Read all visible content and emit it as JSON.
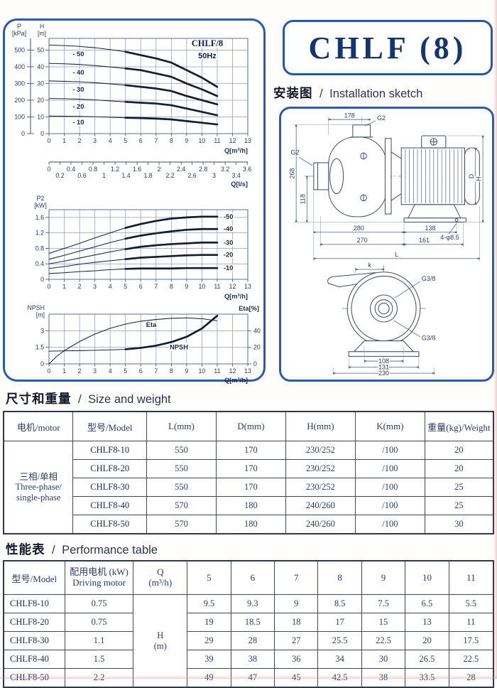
{
  "colors": {
    "panel_border": "#2b59ae",
    "title_text": "#16356e",
    "curve": "#151d30",
    "grid": "#8e9dc2"
  },
  "title_box": {
    "title": "CHLF (8)"
  },
  "sections": {
    "installation": {
      "zh": "安装图",
      "divider": "/",
      "en": "Installation sketch"
    },
    "size_weight": {
      "zh": "尺寸和重量",
      "divider": "/",
      "en": "Size and weight"
    },
    "performance": {
      "zh": "性能表",
      "divider": "/",
      "en": "Performance table"
    }
  },
  "sketch": {
    "labels": {
      "d178": "178",
      "g2_top": "G2",
      "g2_left": "G2",
      "d268": "268",
      "d118": "118",
      "d280": "280",
      "d138": "138",
      "holes": "4-φ8.5",
      "d270": "270",
      "d161": "161",
      "L": "L",
      "D": "D",
      "H": "H",
      "k": "k",
      "g38_top": "G3/8",
      "g38_bottom": "G3/8",
      "d108": "108",
      "d131": "131",
      "d230": "230"
    }
  },
  "size_table": {
    "headers": [
      "电机/motor",
      "型号/Model",
      "L(mm)",
      "D(mm)",
      "H(mm)",
      "K(mm)",
      "重量(kg)/Weight"
    ],
    "motor_zh": "三相/单相",
    "motor_en1": "Three-phase/",
    "motor_en2": "single-phase",
    "rows": [
      {
        "model": "CHLF8-10",
        "l": "550",
        "d": "170",
        "h": "230/252",
        "k": "/100",
        "weight": "20"
      },
      {
        "model": "CHLF8-20",
        "l": "550",
        "d": "170",
        "h": "230/252",
        "k": "/100",
        "weight": "20"
      },
      {
        "model": "CHLF8-30",
        "l": "550",
        "d": "170",
        "h": "230/252",
        "k": "/100",
        "weight": "25"
      },
      {
        "model": "CHLF8-40",
        "l": "570",
        "d": "180",
        "h": "240/260",
        "k": "/100",
        "weight": "25"
      },
      {
        "model": "CHLF8-50",
        "l": "570",
        "d": "180",
        "h": "240/260",
        "k": "/100",
        "weight": "30"
      }
    ]
  },
  "performance_table": {
    "model_header": "型号/Model",
    "motor_header_zh": "配用电机 (kW)",
    "motor_header_en": "Driving motor",
    "q_header_1": "Q",
    "q_header_2": "(m³/h)",
    "q_values": [
      "5",
      "6",
      "7",
      "8",
      "9",
      "10",
      "11"
    ],
    "h_unit_1": "H",
    "h_unit_2": "(m)",
    "rows": [
      {
        "model": "CHLF8-10",
        "motor_kw": "0.75",
        "values": [
          "9.5",
          "9.3",
          "9",
          "8.5",
          "7.5",
          "6.5",
          "5.5"
        ]
      },
      {
        "model": "CHLF8-20",
        "motor_kw": "0.75",
        "values": [
          "19",
          "18.5",
          "18",
          "17",
          "15",
          "13",
          "11"
        ]
      },
      {
        "model": "CHLF8-30",
        "motor_kw": "1.1",
        "values": [
          "29",
          "28",
          "27",
          "25.5",
          "22.5",
          "20",
          "17.5"
        ]
      },
      {
        "model": "CHLF8-40",
        "motor_kw": "1.5",
        "values": [
          "39",
          "38",
          "36",
          "34",
          "30",
          "26.5",
          "22.5"
        ]
      },
      {
        "model": "CHLF8-50",
        "motor_kw": "2.2",
        "values": [
          "49",
          "47",
          "45",
          "42.5",
          "38",
          "33.5",
          "28"
        ]
      }
    ]
  },
  "chart_data": [
    {
      "id": "hq_curves",
      "type": "line",
      "title": "CHLF/8",
      "subtitle": "50Hz",
      "xlabel": "Q[m³/h]",
      "x2label": "Q[l/s]",
      "y_left_titles": {
        "p": [
          "P",
          "[kPa]"
        ],
        "h": [
          "H",
          "[m]"
        ]
      },
      "xlim": [
        0,
        13
      ],
      "ylim": [
        0,
        57
      ],
      "xticks": [
        0,
        1,
        2,
        3,
        4,
        5,
        6,
        7,
        8,
        9,
        10,
        11,
        12,
        13
      ],
      "yticks_h": [
        0,
        10,
        20,
        30,
        40,
        50
      ],
      "yticks_p": [
        0,
        100,
        200,
        300,
        400,
        500
      ],
      "x2ticks_row1": [
        "0",
        "0.4",
        "0.8",
        "1.2",
        "1.6",
        "2",
        "2.4",
        "2.8",
        "3.2",
        "3.6"
      ],
      "x2ticks_row2": [
        "0.2",
        "0.6",
        "1",
        "1.4",
        "1.8",
        "2.2",
        "2.6",
        "3",
        "3.4"
      ],
      "bold_from": 5,
      "series": [
        {
          "label": "- 50",
          "label_at": [
            1.55,
            47.6
          ],
          "points": [
            [
              0,
              53
            ],
            [
              1,
              52.7
            ],
            [
              2,
              52.2
            ],
            [
              3,
              51.4
            ],
            [
              4,
              50.3
            ],
            [
              5,
              49
            ],
            [
              6,
              47
            ],
            [
              7,
              45
            ],
            [
              8,
              42.5
            ],
            [
              9,
              38
            ],
            [
              10,
              33.5
            ],
            [
              11,
              28
            ]
          ]
        },
        {
          "label": "- 40",
          "label_at": [
            1.55,
            36.6
          ],
          "points": [
            [
              0,
              42
            ],
            [
              1,
              41.8
            ],
            [
              2,
              41.4
            ],
            [
              3,
              40.7
            ],
            [
              4,
              39.9
            ],
            [
              5,
              39
            ],
            [
              6,
              38
            ],
            [
              7,
              36
            ],
            [
              8,
              34
            ],
            [
              9,
              30
            ],
            [
              10,
              26.5
            ],
            [
              11,
              22.5
            ]
          ]
        },
        {
          "label": "- 30",
          "label_at": [
            1.55,
            26.3
          ],
          "points": [
            [
              0,
              31.5
            ],
            [
              1,
              31.3
            ],
            [
              2,
              31
            ],
            [
              3,
              30.5
            ],
            [
              4,
              29.8
            ],
            [
              5,
              29
            ],
            [
              6,
              28
            ],
            [
              7,
              27
            ],
            [
              8,
              25.5
            ],
            [
              9,
              22.5
            ],
            [
              10,
              20
            ],
            [
              11,
              17.5
            ]
          ]
        },
        {
          "label": "- 20",
          "label_at": [
            1.55,
            16.2
          ],
          "points": [
            [
              0,
              21
            ],
            [
              1,
              20.9
            ],
            [
              2,
              20.6
            ],
            [
              3,
              20.2
            ],
            [
              4,
              19.6
            ],
            [
              5,
              19
            ],
            [
              6,
              18.5
            ],
            [
              7,
              18
            ],
            [
              8,
              17
            ],
            [
              9,
              15
            ],
            [
              10,
              13
            ],
            [
              11,
              11
            ]
          ]
        },
        {
          "label": "- 10",
          "label_at": [
            1.55,
            6.9
          ],
          "points": [
            [
              0,
              10.5
            ],
            [
              1,
              10.4
            ],
            [
              2,
              10.3
            ],
            [
              3,
              10.1
            ],
            [
              4,
              9.8
            ],
            [
              5,
              9.5
            ],
            [
              6,
              9.3
            ],
            [
              7,
              9
            ],
            [
              8,
              8.5
            ],
            [
              9,
              7.5
            ],
            [
              10,
              6.5
            ],
            [
              11,
              5.5
            ]
          ]
        }
      ]
    },
    {
      "id": "p2_power",
      "type": "line",
      "xlabel": "Q[m³/h]",
      "y_titles": [
        "P2",
        "[kW]"
      ],
      "xlim": [
        0,
        13
      ],
      "ylim": [
        0,
        1.8
      ],
      "xticks": [
        0,
        1,
        2,
        3,
        4,
        5,
        6,
        7,
        8,
        9,
        10,
        11,
        12,
        13
      ],
      "yticks": [
        0,
        0.4,
        0.8,
        1.2,
        1.6
      ],
      "bold_from": 5,
      "series": [
        {
          "label": "-50",
          "points": [
            [
              0,
              0.67
            ],
            [
              1,
              0.8
            ],
            [
              2,
              0.93
            ],
            [
              3,
              1.07
            ],
            [
              4,
              1.2
            ],
            [
              5,
              1.33
            ],
            [
              6,
              1.43
            ],
            [
              7,
              1.51
            ],
            [
              8,
              1.57
            ],
            [
              9,
              1.6
            ],
            [
              10,
              1.62
            ],
            [
              11,
              1.62
            ]
          ]
        },
        {
          "label": "-40",
          "points": [
            [
              0,
              0.52
            ],
            [
              1,
              0.62
            ],
            [
              2,
              0.73
            ],
            [
              3,
              0.84
            ],
            [
              4,
              0.95
            ],
            [
              5,
              1.05
            ],
            [
              6,
              1.13
            ],
            [
              7,
              1.19
            ],
            [
              8,
              1.24
            ],
            [
              9,
              1.28
            ],
            [
              10,
              1.3
            ],
            [
              11,
              1.3
            ]
          ]
        },
        {
          "label": "-30",
          "points": [
            [
              0,
              0.4
            ],
            [
              1,
              0.47
            ],
            [
              2,
              0.55
            ],
            [
              3,
              0.63
            ],
            [
              4,
              0.71
            ],
            [
              5,
              0.78
            ],
            [
              6,
              0.84
            ],
            [
              7,
              0.88
            ],
            [
              8,
              0.91
            ],
            [
              9,
              0.93
            ],
            [
              10,
              0.95
            ],
            [
              11,
              0.95
            ]
          ]
        },
        {
          "label": "-20",
          "points": [
            [
              0,
              0.28
            ],
            [
              1,
              0.33
            ],
            [
              2,
              0.39
            ],
            [
              3,
              0.44
            ],
            [
              4,
              0.48
            ],
            [
              5,
              0.52
            ],
            [
              6,
              0.56
            ],
            [
              7,
              0.58
            ],
            [
              8,
              0.6
            ],
            [
              9,
              0.62
            ],
            [
              10,
              0.63
            ],
            [
              11,
              0.63
            ]
          ]
        },
        {
          "label": "-10",
          "points": [
            [
              0,
              0.15
            ],
            [
              1,
              0.17
            ],
            [
              2,
              0.2
            ],
            [
              3,
              0.22
            ],
            [
              4,
              0.25
            ],
            [
              5,
              0.27
            ],
            [
              6,
              0.28
            ],
            [
              7,
              0.28
            ],
            [
              8,
              0.28
            ],
            [
              9,
              0.29
            ],
            [
              10,
              0.29
            ],
            [
              11,
              0.29
            ]
          ]
        }
      ]
    },
    {
      "id": "npsh_eta",
      "type": "line",
      "xlabel": "Q[m³/h]",
      "xlim": [
        0,
        13
      ],
      "xticks": [
        0,
        1,
        2,
        3,
        4,
        5,
        6,
        7,
        8,
        9,
        10,
        11,
        12,
        13
      ],
      "left_axis": {
        "titles": [
          "NPSH",
          "[m]"
        ],
        "ticks": [
          0,
          1.5,
          3
        ],
        "lim": [
          0,
          4.5
        ]
      },
      "right_axis": {
        "title": "Eta[%]",
        "ticks": [
          0,
          20,
          40
        ],
        "lim": [
          0,
          60
        ]
      },
      "series": [
        {
          "label": "Eta",
          "axis": "right",
          "label_at": [
            6.35,
            47
          ],
          "points": [
            [
              0,
              0
            ],
            [
              0.5,
              9
            ],
            [
              1,
              16
            ],
            [
              2,
              27
            ],
            [
              3,
              36
            ],
            [
              4,
              43
            ],
            [
              5,
              48
            ],
            [
              6,
              51.5
            ],
            [
              7,
              53.5
            ],
            [
              8,
              55
            ],
            [
              9,
              55.5
            ],
            [
              10,
              54.5
            ],
            [
              11,
              52
            ]
          ]
        },
        {
          "label": "NPSH",
          "axis": "left",
          "label_at": [
            7.9,
            1.5
          ],
          "bold_from": 5,
          "points": [
            [
              0,
              1.15
            ],
            [
              1,
              1.18
            ],
            [
              2,
              1.2
            ],
            [
              3,
              1.23
            ],
            [
              4,
              1.27
            ],
            [
              5,
              1.32
            ],
            [
              6,
              1.45
            ],
            [
              7,
              1.65
            ],
            [
              8,
              1.97
            ],
            [
              9,
              2.45
            ],
            [
              10,
              3.2
            ],
            [
              11,
              4.35
            ]
          ]
        }
      ]
    }
  ]
}
